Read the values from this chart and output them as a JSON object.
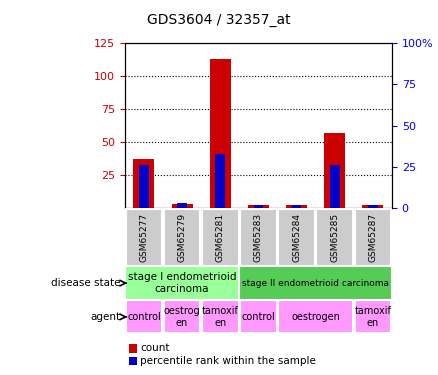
{
  "title": "GDS3604 / 32357_at",
  "samples": [
    "GSM65277",
    "GSM65279",
    "GSM65281",
    "GSM65283",
    "GSM65284",
    "GSM65285",
    "GSM65287"
  ],
  "count_values": [
    37,
    3,
    113,
    2,
    2,
    57,
    2
  ],
  "percentile_values": [
    26,
    3,
    33,
    2,
    2,
    26,
    2
  ],
  "ylim_left": [
    0,
    125
  ],
  "ylim_right": [
    0,
    100
  ],
  "yticks_left": [
    25,
    50,
    75,
    100,
    125
  ],
  "yticks_right": [
    0,
    25,
    50,
    75,
    100
  ],
  "count_color": "#cc0000",
  "percentile_color": "#0000cc",
  "bar_width": 0.55,
  "pct_bar_width": 0.25,
  "disease_state_colors": [
    "#99ff99",
    "#55cc55"
  ],
  "agent_color": "#ff99ff",
  "legend_count_label": "count",
  "legend_percentile_label": "percentile rank within the sample",
  "sample_bg_color": "#cccccc",
  "stage1_label": "stage I endometrioid\ncarcinoma",
  "stage2_label": "stage II endometrioid carcinoma",
  "agent_spans": [
    [
      0,
      1,
      "control"
    ],
    [
      1,
      2,
      "oestrog\nen"
    ],
    [
      2,
      3,
      "tamoxif\nen"
    ],
    [
      3,
      4,
      "control"
    ],
    [
      4,
      6,
      "oestrogen"
    ],
    [
      6,
      7,
      "tamoxif\nen"
    ]
  ],
  "ds_label": "disease state",
  "ag_label": "agent"
}
